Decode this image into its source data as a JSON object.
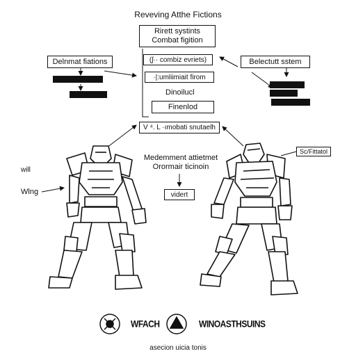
{
  "title": "Reveving Atthe Fictions",
  "center_box": {
    "line1": "Rirett systints",
    "line2": "Combat figition"
  },
  "center_items": [
    "(ʃ·· combiz evriets)",
    "·|:umliimiait firom",
    "Dinoilucl",
    "Finenlod"
  ],
  "center_bottom_box": "V ⁴. L ·ımobati snutaelh",
  "left_box": "Delnmat fiations",
  "right_box": "Belectutt   sstem",
  "right_small_label": "Sc/Fittatol",
  "left_labels": {
    "upper": "will",
    "lower": "Wlng"
  },
  "middle_text": {
    "line1": "Medemment attietmet",
    "line2": "Orormair ticinoin"
  },
  "middle_small_box": "vidert",
  "logos": [
    {
      "name": "left-logo",
      "label": "WFACH"
    },
    {
      "name": "right-logo",
      "label": "WINOASTHSUINS"
    }
  ],
  "footer": "asecion uicia tonis"
}
